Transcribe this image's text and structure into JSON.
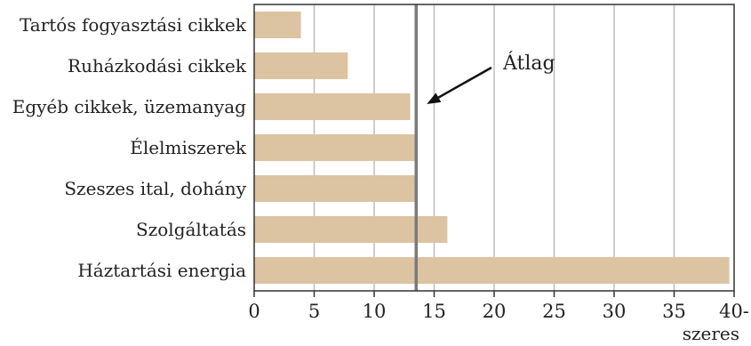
{
  "chart_data": {
    "type": "bar",
    "orientation": "horizontal",
    "categories": [
      "Tartós fogyasztási cikkek",
      "Ruházkodási cikkek",
      "Egyéb cikkek, üzemanyag",
      "Élelmiszerek",
      "Szeszes ital, dohány",
      "Szolgáltatás",
      "Háztartási energia"
    ],
    "values": [
      3.9,
      7.8,
      13.0,
      13.6,
      13.6,
      16.1,
      39.6
    ],
    "xlim": [
      0,
      40
    ],
    "xticks": [
      0,
      5,
      10,
      15,
      20,
      25,
      30,
      35,
      40
    ],
    "xtick_labels": [
      "0",
      "5",
      "10",
      "15",
      "20",
      "25",
      "30",
      "35",
      "40-"
    ],
    "x_unit_label": "szeres",
    "reference_line": {
      "value": 13.5,
      "label": "Átlag"
    },
    "grid": "vertical",
    "colors": {
      "bar": "#dcc3a1",
      "grid": "#bdbdbd",
      "axis": "#333333",
      "reference_line": "#7a7a7a",
      "arrow": "#111111"
    }
  }
}
